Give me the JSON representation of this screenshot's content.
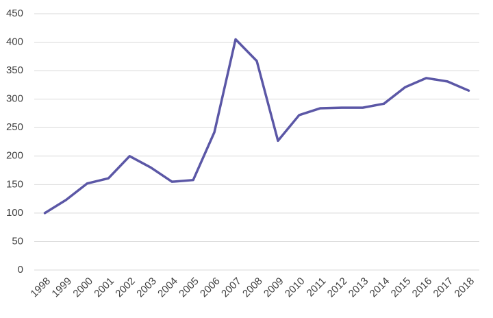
{
  "chart_data": {
    "type": "line",
    "categories": [
      "1998",
      "1999",
      "2000",
      "2001",
      "2002",
      "2003",
      "2004",
      "2005",
      "2006",
      "2007",
      "2008",
      "2009",
      "2010",
      "2011",
      "2012",
      "2013",
      "2014",
      "2015",
      "2016",
      "2017",
      "2018"
    ],
    "values": [
      100,
      123,
      152,
      161,
      200,
      180,
      155,
      158,
      242,
      405,
      367,
      227,
      272,
      284,
      285,
      285,
      292,
      321,
      337,
      331,
      315
    ],
    "color": "#5b57a6",
    "ylim": [
      0,
      450
    ],
    "yticks": [
      0,
      50,
      100,
      150,
      200,
      250,
      300,
      350,
      400,
      450
    ],
    "grid": true
  }
}
